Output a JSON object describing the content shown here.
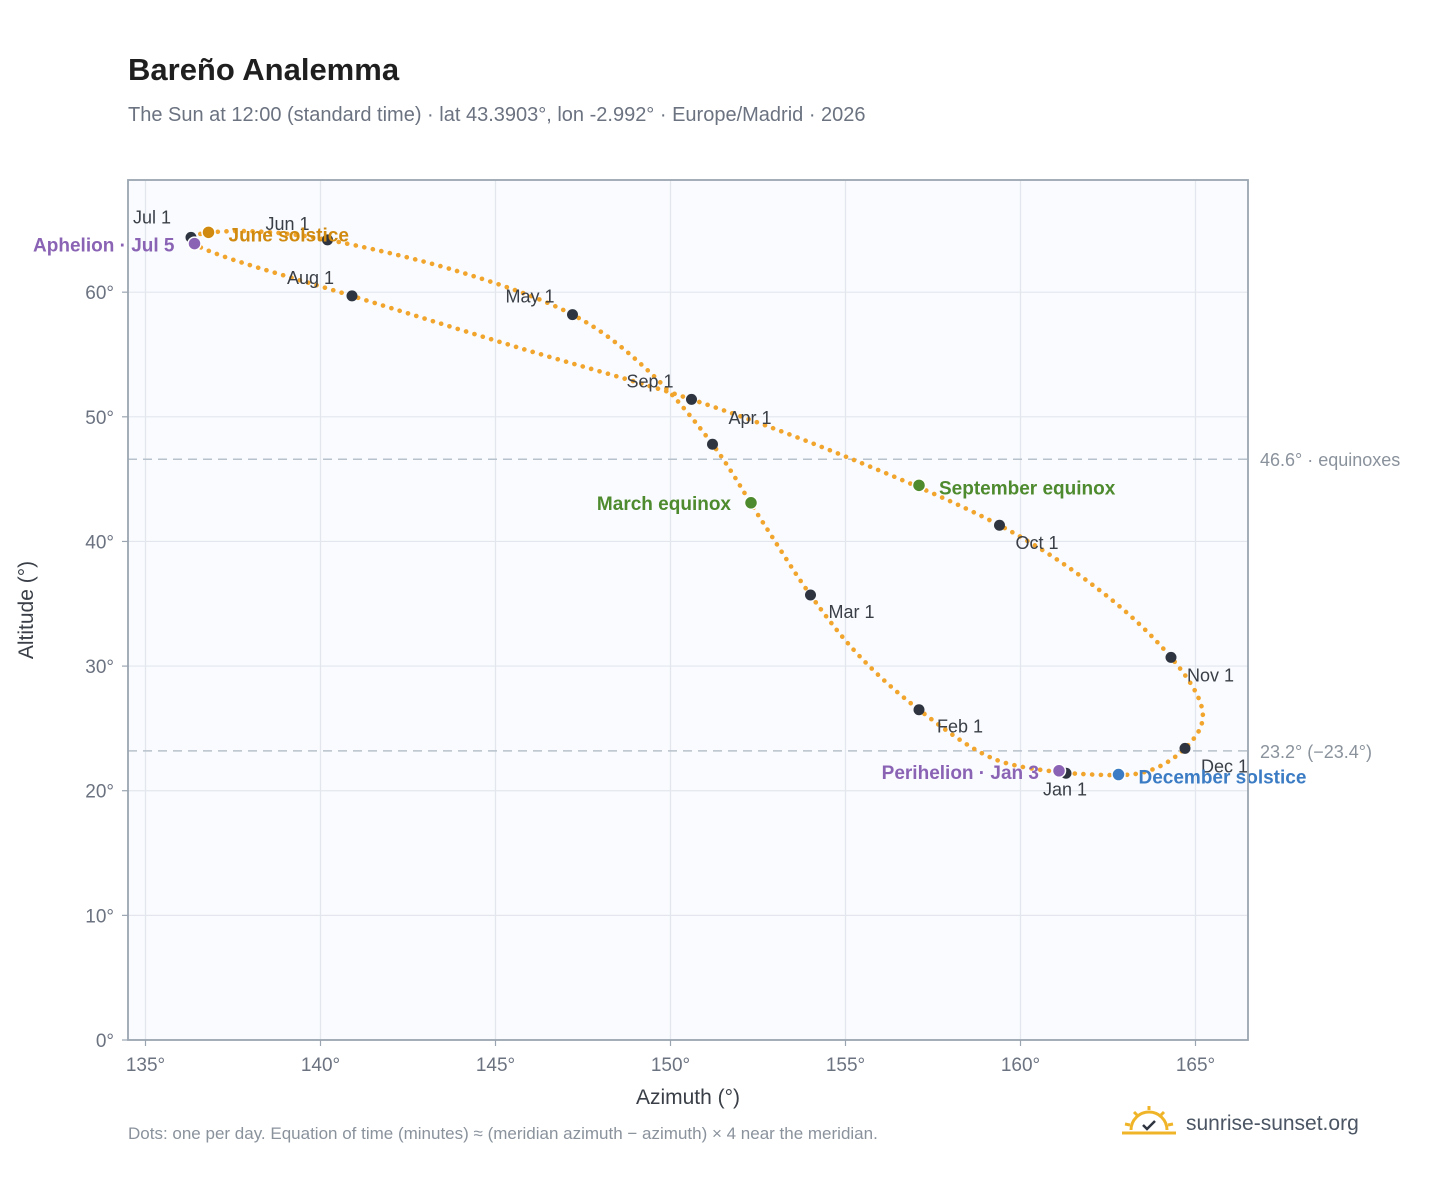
{
  "title": "Bareño Analemma",
  "subtitle": "The Sun at 12:00 (standard time) · lat 43.3903°, lon -2.992° · Europe/Madrid · 2026",
  "footnote": "Dots: one per day. Equation of time (minutes) ≈ (meridian azimuth − azimuth) × 4 near the meridian.",
  "brand": {
    "name": "sunrise-sunset.org",
    "icon": "sun-logo-icon"
  },
  "colors": {
    "curve": "#f2a52c",
    "month_dot": "#2f3540",
    "equinox": "#4e8a2e",
    "june_solstice": "#d08a10",
    "december_solstice": "#3b7cc4",
    "apsis": "#8a63b5",
    "plot_bg": "#f9fbfe",
    "grid": "#e3e7ed",
    "ref_line": "#b8c2cc"
  },
  "chart_data": {
    "type": "scatter",
    "xlabel": "Azimuth (°)",
    "ylabel": "Altitude (°)",
    "xlim": [
      134.5,
      166.5
    ],
    "ylim": [
      0,
      69
    ],
    "xticks": [
      135,
      140,
      145,
      150,
      155,
      160,
      165
    ],
    "xtick_labels": [
      "135°",
      "140°",
      "145°",
      "150°",
      "155°",
      "160°",
      "165°"
    ],
    "yticks": [
      0,
      10,
      20,
      30,
      40,
      50,
      60
    ],
    "ytick_labels": [
      "0°",
      "10°",
      "20°",
      "30°",
      "40°",
      "50°",
      "60°"
    ],
    "grid": true,
    "reference_lines": [
      {
        "y": 46.6,
        "label": "46.6° · equinoxes"
      },
      {
        "y": 23.2,
        "label": "23.2° (−23.4°)"
      }
    ],
    "month_points": [
      {
        "label": "Jan 1",
        "az": 161.3,
        "alt": 21.4
      },
      {
        "label": "Feb 1",
        "az": 157.1,
        "alt": 26.5
      },
      {
        "label": "Mar 1",
        "az": 154.0,
        "alt": 35.7
      },
      {
        "label": "Apr 1",
        "az": 151.2,
        "alt": 47.8
      },
      {
        "label": "May 1",
        "az": 147.2,
        "alt": 58.2
      },
      {
        "label": "Jun 1",
        "az": 140.2,
        "alt": 64.2
      },
      {
        "label": "Jul 1",
        "az": 136.3,
        "alt": 64.4
      },
      {
        "label": "Aug 1",
        "az": 140.9,
        "alt": 59.7
      },
      {
        "label": "Sep 1",
        "az": 150.6,
        "alt": 51.4
      },
      {
        "label": "Oct 1",
        "az": 159.4,
        "alt": 41.3
      },
      {
        "label": "Nov 1",
        "az": 164.3,
        "alt": 30.7
      },
      {
        "label": "Dec 1",
        "az": 164.7,
        "alt": 23.4
      }
    ],
    "events": [
      {
        "label": "June solstice",
        "az": 136.8,
        "alt": 64.8
      },
      {
        "label": "Aphelion · Jul 5",
        "az": 136.4,
        "alt": 63.9
      },
      {
        "label": "March equinox",
        "az": 152.3,
        "alt": 43.1
      },
      {
        "label": "September equinox",
        "az": 157.1,
        "alt": 44.5
      },
      {
        "label": "Perihelion · Jan 3",
        "az": 161.1,
        "alt": 21.6
      },
      {
        "label": "December solstice",
        "az": 162.8,
        "alt": 21.3
      }
    ],
    "curve_path": [
      [
        161.3,
        21.4
      ],
      [
        159.2,
        22.6
      ],
      [
        157.1,
        26.5
      ],
      [
        155.4,
        30.8
      ],
      [
        154.0,
        35.7
      ],
      [
        152.6,
        41.7
      ],
      [
        151.2,
        47.8
      ],
      [
        149.4,
        53.6
      ],
      [
        147.2,
        58.2
      ],
      [
        143.9,
        61.7
      ],
      [
        140.2,
        64.2
      ],
      [
        137.8,
        64.9
      ],
      [
        136.3,
        64.4
      ],
      [
        137.2,
        62.9
      ],
      [
        140.9,
        59.7
      ],
      [
        145.6,
        55.6
      ],
      [
        150.6,
        51.4
      ],
      [
        155.1,
        46.7
      ],
      [
        159.4,
        41.3
      ],
      [
        162.3,
        36.0
      ],
      [
        164.3,
        30.7
      ],
      [
        165.2,
        26.4
      ],
      [
        164.7,
        23.4
      ],
      [
        163.4,
        21.4
      ],
      [
        161.3,
        21.4
      ]
    ]
  }
}
